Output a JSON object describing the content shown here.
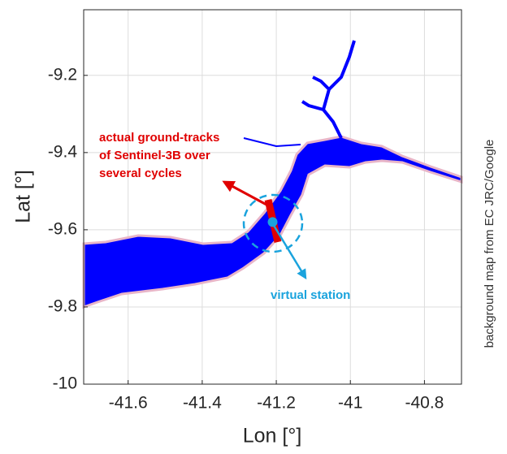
{
  "chart_data": {
    "type": "map",
    "xlabel": "Lon [°]",
    "ylabel": "Lat [°]",
    "xlim": [
      -41.72,
      -40.7
    ],
    "ylim": [
      -10,
      -9.03
    ],
    "xticks": [
      -41.6,
      -41.4,
      -41.2,
      -41,
      -40.8
    ],
    "yticks": [
      -10,
      -9.8,
      -9.6,
      -9.4,
      -9.2
    ],
    "grid": true,
    "track_label": [
      "actual ground-tracks",
      "of Sentinel-3B over",
      "several cycles"
    ],
    "station": {
      "label": "virtual station",
      "lon": -41.21,
      "lat": -9.58
    },
    "credit": "background map from EC JRC/Google"
  }
}
